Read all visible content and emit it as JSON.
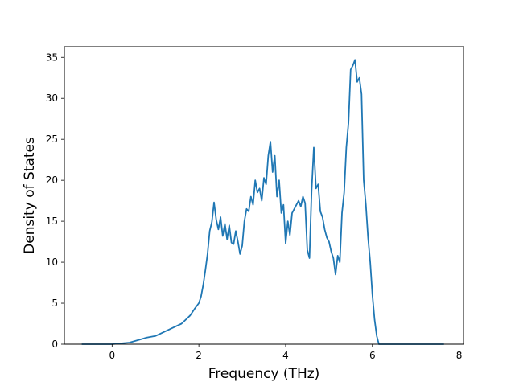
{
  "chart_data": {
    "type": "line",
    "title": "",
    "xlabel": "Frequency (THz)",
    "ylabel": "Density of States",
    "xlim": [
      -1.1,
      8.1
    ],
    "ylim": [
      0,
      36.3
    ],
    "xticks": [
      0,
      2,
      4,
      6,
      8
    ],
    "yticks": [
      0,
      5,
      10,
      15,
      20,
      25,
      30,
      35
    ],
    "xtick_labels": [
      "0",
      "2",
      "4",
      "6",
      "8"
    ],
    "ytick_labels": [
      "0",
      "5",
      "10",
      "15",
      "20",
      "25",
      "30",
      "35"
    ],
    "grid": false,
    "legend": "none",
    "series_color": "#1f77b4",
    "series": [
      {
        "x": [
          -0.7,
          0.0,
          0.2,
          0.4,
          0.6,
          0.8,
          1.0,
          1.2,
          1.4,
          1.6,
          1.8,
          1.9,
          2.0,
          2.05,
          2.1,
          2.15,
          2.2,
          2.25,
          2.3,
          2.35,
          2.4,
          2.45,
          2.5,
          2.55,
          2.6,
          2.65,
          2.7,
          2.75,
          2.8,
          2.85,
          2.9,
          2.95,
          3.0,
          3.05,
          3.1,
          3.15,
          3.2,
          3.25,
          3.3,
          3.35,
          3.4,
          3.45,
          3.5,
          3.55,
          3.6,
          3.65,
          3.7,
          3.75,
          3.8,
          3.85,
          3.9,
          3.95,
          4.0,
          4.05,
          4.1,
          4.15,
          4.2,
          4.25,
          4.3,
          4.35,
          4.4,
          4.45,
          4.5,
          4.55,
          4.6,
          4.65,
          4.7,
          4.75,
          4.8,
          4.85,
          4.9,
          4.95,
          5.0,
          5.05,
          5.1,
          5.15,
          5.2,
          5.25,
          5.3,
          5.35,
          5.4,
          5.45,
          5.5,
          5.55,
          5.6,
          5.65,
          5.7,
          5.75,
          5.8,
          5.85,
          5.9,
          5.95,
          6.0,
          6.05,
          6.1,
          6.15,
          6.2,
          6.25,
          6.3,
          6.35,
          6.4,
          6.45,
          6.5,
          6.55,
          6.6,
          6.65,
          6.7,
          6.75,
          6.8,
          6.85,
          6.9,
          6.95,
          7.0,
          7.1,
          7.3,
          7.5,
          7.65
        ],
        "y": [
          0,
          0,
          0.1,
          0.2,
          0.5,
          0.8,
          1.0,
          1.5,
          2.0,
          2.5,
          3.5,
          4.3,
          5.0,
          5.8,
          7.2,
          9.0,
          11.0,
          13.8,
          14.9,
          17.3,
          15.2,
          14.0,
          15.5,
          13.2,
          14.7,
          12.8,
          14.5,
          12.4,
          12.2,
          13.8,
          12.5,
          11.0,
          12.0,
          15.0,
          16.5,
          16.2,
          18.0,
          17.0,
          20.0,
          18.5,
          19.0,
          17.5,
          20.3,
          19.5,
          23.0,
          24.7,
          21.0,
          23.0,
          18.0,
          20.0,
          16.0,
          17.0,
          12.3,
          15.0,
          13.3,
          16.0,
          16.5,
          17.0,
          17.5,
          16.8,
          18.0,
          17.2,
          11.5,
          10.5,
          18.8,
          24.0,
          19.0,
          19.5,
          16.2,
          15.5,
          14.0,
          13.0,
          12.5,
          11.3,
          10.5,
          8.5,
          10.8,
          10.0,
          16.0,
          18.5,
          24.0,
          27.0,
          33.5,
          34.0,
          34.7,
          32.0,
          32.5,
          30.5,
          20.0,
          17.0,
          13.0,
          10.0,
          6.0,
          3.0,
          1.0,
          0,
          0,
          0,
          0,
          0,
          0,
          0,
          0,
          0,
          0,
          0,
          0,
          0,
          0,
          0,
          0,
          0,
          0,
          0,
          0,
          0,
          0
        ]
      }
    ]
  }
}
